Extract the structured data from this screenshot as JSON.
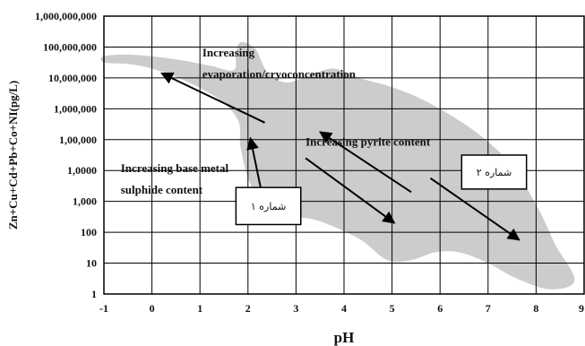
{
  "chart_data": {
    "type": "area",
    "title": "",
    "xlabel": "pH",
    "ylabel": "Zn+Cu+Cd+Pb+Co+NI(pg/L)",
    "xlim": [
      -1,
      9
    ],
    "ylim_log10": [
      0,
      9
    ],
    "y_scale": "log",
    "grid": true,
    "xticks": [
      "-1",
      "0",
      "1",
      "2",
      "3",
      "4",
      "5",
      "6",
      "7",
      "8",
      "9"
    ],
    "yticks": [
      "1",
      "10",
      "100",
      "1,000",
      "1,0000",
      "1,00,000",
      "1,000,000",
      "10,000,000",
      "100,000,000",
      "1,000,000,000"
    ],
    "region": {
      "color": "#cccccc",
      "upper_boundary": [
        {
          "x": -1.0,
          "y_log10": 7.7
        },
        {
          "x": -0.4,
          "y_log10": 7.75
        },
        {
          "x": 0.5,
          "y_log10": 7.6
        },
        {
          "x": 1.2,
          "y_log10": 7.4
        },
        {
          "x": 1.7,
          "y_log10": 7.25
        },
        {
          "x": 1.75,
          "y_log10": 7.8
        },
        {
          "x": 1.85,
          "y_log10": 8.15
        },
        {
          "x": 2.15,
          "y_log10": 7.95
        },
        {
          "x": 2.4,
          "y_log10": 7.2
        },
        {
          "x": 2.8,
          "y_log10": 6.85
        },
        {
          "x": 3.3,
          "y_log10": 7.1
        },
        {
          "x": 3.8,
          "y_log10": 7.3
        },
        {
          "x": 4.3,
          "y_log10": 7.0
        },
        {
          "x": 4.9,
          "y_log10": 6.75
        },
        {
          "x": 5.5,
          "y_log10": 6.4
        },
        {
          "x": 6.1,
          "y_log10": 5.9
        },
        {
          "x": 6.7,
          "y_log10": 5.3
        },
        {
          "x": 7.3,
          "y_log10": 4.5
        },
        {
          "x": 7.7,
          "y_log10": 3.7
        },
        {
          "x": 8.1,
          "y_log10": 2.6
        },
        {
          "x": 8.4,
          "y_log10": 1.6
        },
        {
          "x": 8.8,
          "y_log10": 0.45
        }
      ],
      "lower_boundary": [
        {
          "x": 8.3,
          "y_log10": 0.15
        },
        {
          "x": 7.6,
          "y_log10": 0.5
        },
        {
          "x": 7.0,
          "y_log10": 1.0
        },
        {
          "x": 6.4,
          "y_log10": 1.35
        },
        {
          "x": 5.9,
          "y_log10": 1.35
        },
        {
          "x": 5.4,
          "y_log10": 1.1
        },
        {
          "x": 4.9,
          "y_log10": 1.1
        },
        {
          "x": 4.3,
          "y_log10": 1.8
        },
        {
          "x": 3.4,
          "y_log10": 2.4
        },
        {
          "x": 2.6,
          "y_log10": 2.6
        },
        {
          "x": 2.1,
          "y_log10": 3.4
        },
        {
          "x": 1.85,
          "y_log10": 4.7
        },
        {
          "x": 1.8,
          "y_log10": 5.6
        },
        {
          "x": 1.4,
          "y_log10": 6.3
        },
        {
          "x": 0.7,
          "y_log10": 6.9
        },
        {
          "x": 0.0,
          "y_log10": 7.3
        },
        {
          "x": -0.5,
          "y_log10": 7.45
        },
        {
          "x": -1.0,
          "y_log10": 7.5
        }
      ]
    },
    "annotations": [
      {
        "id": "evap",
        "lines": [
          "Increasing",
          "evaporation/cryoconcentration"
        ],
        "x": 1.05,
        "y_log10": 7.7
      },
      {
        "id": "pyrite",
        "lines": [
          "Increasing pyrite content"
        ],
        "x": 3.2,
        "y_log10": 4.8
      },
      {
        "id": "base",
        "lines": [
          "Increasing base metal",
          "sulphide content"
        ],
        "x": -0.65,
        "y_log10": 3.95
      }
    ],
    "arrows": [
      {
        "id": "evap-arrow",
        "from": {
          "x": 2.35,
          "y_log10": 5.55
        },
        "to": {
          "x": 0.2,
          "y_log10": 7.15
        }
      },
      {
        "id": "base-arrow",
        "from": {
          "x": 2.35,
          "y_log10": 2.8
        },
        "to": {
          "x": 2.05,
          "y_log10": 5.05
        }
      },
      {
        "id": "pyrite-arrow",
        "from": {
          "x": 5.4,
          "y_log10": 3.3
        },
        "to": {
          "x": 3.5,
          "y_log10": 5.25
        }
      },
      {
        "id": "down-arrow-1",
        "from": {
          "x": 3.2,
          "y_log10": 4.4
        },
        "to": {
          "x": 5.05,
          "y_log10": 2.3
        }
      },
      {
        "id": "down-arrow-2",
        "from": {
          "x": 5.8,
          "y_log10": 3.75
        },
        "to": {
          "x": 7.65,
          "y_log10": 1.75
        }
      }
    ],
    "labeled_boxes": [
      {
        "id": "box1",
        "label": "شماره ۱",
        "x0": 1.75,
        "x1": 3.1,
        "y0_log10": 3.45,
        "y1_log10": 2.25
      },
      {
        "id": "box2",
        "label": "شماره ۲",
        "x0": 6.45,
        "x1": 7.8,
        "y0_log10": 4.5,
        "y1_log10": 3.4
      }
    ]
  }
}
